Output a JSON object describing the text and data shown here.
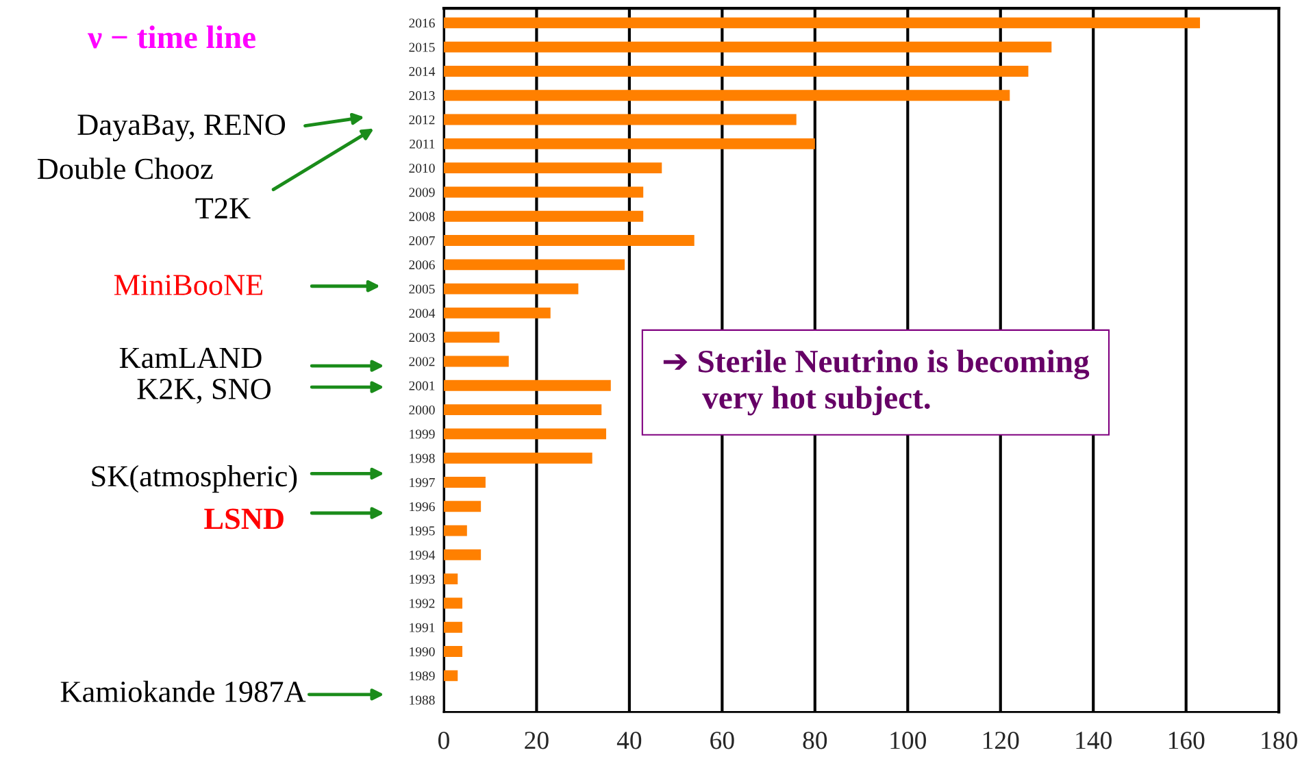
{
  "chart_data": {
    "type": "bar",
    "orientation": "horizontal",
    "title": "ν − time line",
    "categories": [
      "2016",
      "2015",
      "2014",
      "2013",
      "2012",
      "2011",
      "2010",
      "2009",
      "2008",
      "2007",
      "2006",
      "2005",
      "2004",
      "2003",
      "2002",
      "2001",
      "2000",
      "1999",
      "1998",
      "1997",
      "1996",
      "1995",
      "1994",
      "1993",
      "1992",
      "1991",
      "1990",
      "1989",
      "1988"
    ],
    "values": [
      163,
      131,
      126,
      122,
      76,
      80,
      47,
      43,
      43,
      54,
      39,
      29,
      23,
      12,
      14,
      36,
      34,
      35,
      32,
      9,
      8,
      5,
      8,
      3,
      4,
      4,
      4,
      3,
      0
    ],
    "color": "#ff8000",
    "xlim": [
      0,
      180
    ],
    "xticks": [
      0,
      20,
      40,
      60,
      80,
      100,
      120,
      140,
      160,
      180
    ],
    "grid": "x",
    "annotations": [
      "DayaBay, RENO",
      "Double Chooz",
      "T2K",
      "MiniBooNE",
      "KamLAND",
      "K2K, SNO",
      "SK(atmospheric)",
      "LSND",
      "Kamiokande 1987A",
      "➔ Sterile Neutrino is becoming\n     very hot subject."
    ]
  }
}
